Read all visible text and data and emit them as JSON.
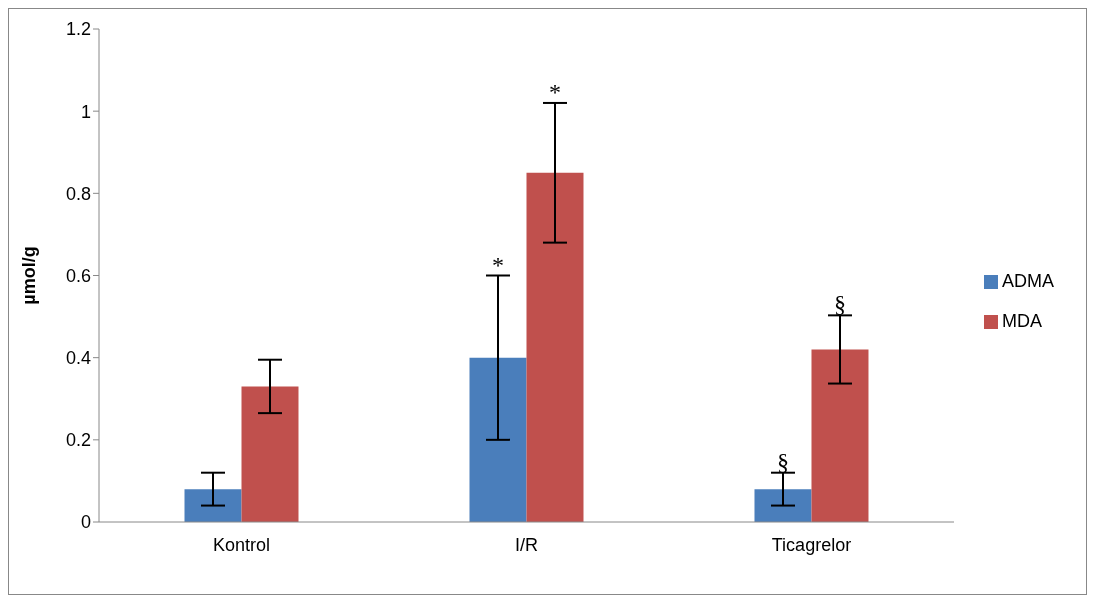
{
  "chart_data": {
    "type": "bar",
    "ylabel": "µmol/g",
    "categories": [
      "Kontrol",
      "I/R",
      "Ticagrelor"
    ],
    "series": [
      {
        "name": "ADMA",
        "color": "#4a7ebb",
        "values": [
          0.08,
          0.4,
          0.08
        ],
        "errors": [
          0.04,
          0.2,
          0.04
        ]
      },
      {
        "name": "MDA",
        "color": "#c0504d",
        "values": [
          0.33,
          0.85,
          0.42
        ],
        "errors": [
          0.065,
          0.17,
          0.083
        ]
      }
    ],
    "ylim": [
      0,
      1.2
    ],
    "yticks": [
      0,
      0.2,
      0.4,
      0.6,
      0.8,
      1,
      1.2
    ],
    "grid": false,
    "legend": "right",
    "annotations": [
      {
        "text": "*",
        "x": "I/R",
        "y": 0.6
      },
      {
        "text": "*",
        "x": "I/R",
        "y": 0.85
      },
      {
        "text": "§",
        "x": "Ticagrelor",
        "y": 0.12
      },
      {
        "text": "§",
        "x": "Ticagrelor",
        "y": 0.42
      }
    ]
  }
}
